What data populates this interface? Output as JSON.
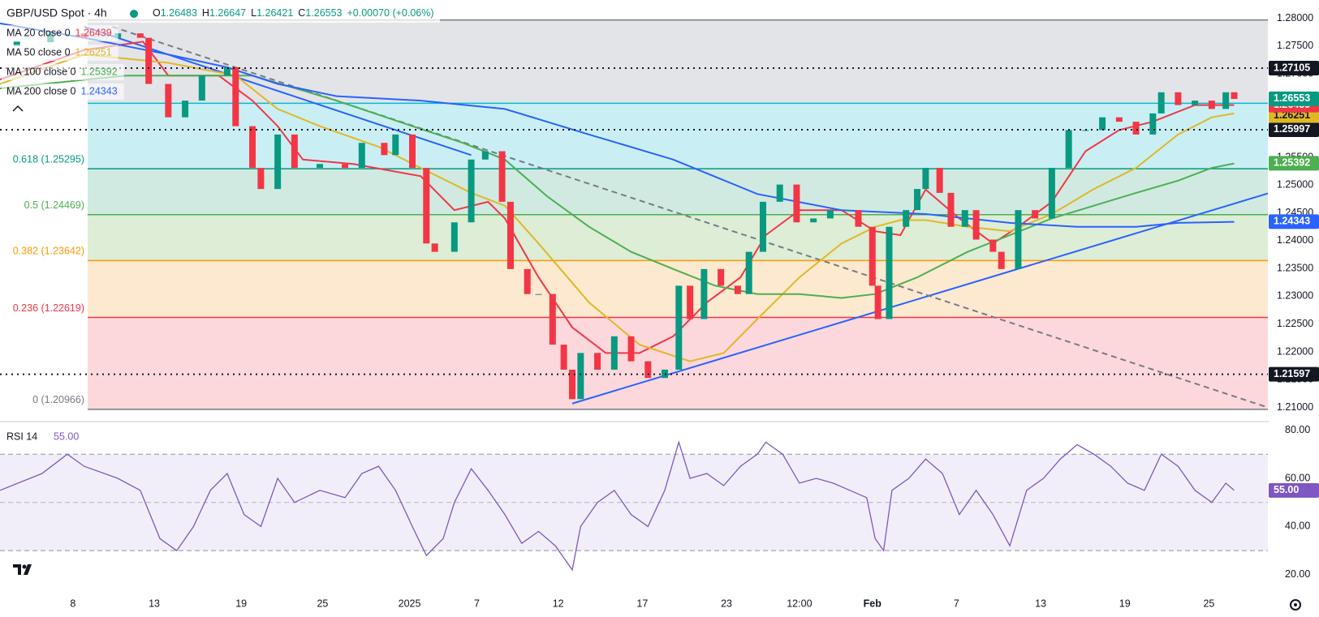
{
  "chart_data": [
    {
      "type": "candlestick",
      "title": "GBP/USD Spot · 4h",
      "ohlc": [
        "O",
        "1.26483",
        "H",
        "1.26647",
        "L",
        "1.26421",
        "C",
        "1.26553",
        "+0.00070 (+0.06%)"
      ],
      "up_color": "#089981",
      "down_color": "#f23645",
      "x": [
        6,
        18,
        30,
        42,
        50,
        53,
        60,
        66,
        72,
        81,
        84,
        90,
        93,
        99,
        105,
        114,
        123,
        129,
        137,
        141,
        147,
        152,
        155,
        162,
        168,
        173,
        179,
        182,
        188,
        192,
        197,
        201,
        204,
        207,
        213,
        219,
        225,
        231,
        237,
        242,
        246,
        251,
        257,
        263,
        267,
        272,
        278,
        284,
        290,
        296,
        302,
        306,
        311,
        313,
        317,
        323,
        327,
        330,
        335,
        339,
        344,
        348,
        354,
        357,
        363,
        369,
        375,
        381,
        387,
        393,
        399,
        405,
        411,
        414,
        420,
        426,
        432,
        437,
        440
      ],
      "open": [
        1.275,
        1.2758,
        1.2773,
        1.2765,
        1.2773,
        1.2765,
        1.2682,
        1.2622,
        1.2652,
        1.2697,
        1.2712,
        1.2606,
        1.2531,
        1.2493,
        1.2591,
        1.2531,
        1.2538,
        1.2531,
        1.2576,
        1.2554,
        1.2591,
        1.2531,
        1.2395,
        1.238,
        1.2433,
        1.2546,
        1.2561,
        1.247,
        1.2349,
        1.2304,
        1.2304,
        1.2213,
        1.2168,
        1.2115,
        1.2198,
        1.2168,
        1.2228,
        1.2183,
        1.2153,
        1.2168,
        1.2319,
        1.2259,
        1.2349,
        1.2319,
        1.2304,
        1.238,
        1.247,
        1.2501,
        1.2433,
        1.244,
        1.2455,
        1.2455,
        1.2425,
        1.2319,
        1.2259,
        1.2425,
        1.2455,
        1.2493,
        1.2531,
        1.2486,
        1.2425,
        1.2455,
        1.2402,
        1.238,
        1.2349,
        1.2455,
        1.244,
        1.2531,
        1.2599,
        1.2599,
        1.2622,
        1.2614,
        1.2591,
        1.2629,
        1.2667,
        1.2644,
        1.2652,
        1.2637,
        1.2667
      ],
      "close": [
        1.2758,
        1.2773,
        1.2765,
        1.2773,
        1.2765,
        1.2682,
        1.2622,
        1.2652,
        1.2697,
        1.2712,
        1.2606,
        1.2531,
        1.2493,
        1.2591,
        1.2531,
        1.2538,
        1.2531,
        1.2576,
        1.2554,
        1.2591,
        1.2531,
        1.2395,
        1.238,
        1.2433,
        1.2546,
        1.2561,
        1.247,
        1.2349,
        1.2304,
        1.2304,
        1.2213,
        1.2168,
        1.2115,
        1.2198,
        1.2168,
        1.2228,
        1.2183,
        1.2153,
        1.2168,
        1.2319,
        1.2259,
        1.2349,
        1.2319,
        1.2304,
        1.238,
        1.247,
        1.2501,
        1.2433,
        1.244,
        1.2455,
        1.2455,
        1.2425,
        1.2319,
        1.2259,
        1.2425,
        1.2455,
        1.2493,
        1.2531,
        1.2486,
        1.2425,
        1.2455,
        1.2402,
        1.238,
        1.2349,
        1.2455,
        1.244,
        1.2531,
        1.2599,
        1.2599,
        1.2622,
        1.2614,
        1.2591,
        1.2629,
        1.2667,
        1.2644,
        1.2652,
        1.2637,
        1.2667,
        1.2655
      ],
      "xlim": [
        0,
        452
      ],
      "xticks": [
        {
          "value": 26,
          "label": "8"
        },
        {
          "value": 55,
          "label": "13"
        },
        {
          "value": 86,
          "label": "19"
        },
        {
          "value": 115,
          "label": "25"
        },
        {
          "value": 146,
          "label": "2025"
        },
        {
          "value": 170,
          "label": "7"
        },
        {
          "value": 199,
          "label": "12"
        },
        {
          "value": 229,
          "label": "17"
        },
        {
          "value": 259,
          "label": "23"
        },
        {
          "value": 285,
          "label": "12:00"
        },
        {
          "value": 311,
          "label": "Feb"
        },
        {
          "value": 341,
          "label": "7"
        },
        {
          "value": 371,
          "label": "13"
        },
        {
          "value": 401,
          "label": "19"
        },
        {
          "value": 431,
          "label": "25"
        }
      ],
      "ylim": [
        1.2076,
        1.2833
      ],
      "yticks": [
        {
          "value": 1.21,
          "label": "1.21000"
        },
        {
          "value": 1.215,
          "label": "1.21500"
        },
        {
          "value": 1.22,
          "label": "1.22000"
        },
        {
          "value": 1.225,
          "label": "1.22500"
        },
        {
          "value": 1.23,
          "label": "1.23000"
        },
        {
          "value": 1.235,
          "label": "1.23500"
        },
        {
          "value": 1.24,
          "label": "1.24000"
        },
        {
          "value": 1.245,
          "label": "1.24500"
        },
        {
          "value": 1.25,
          "label": "1.25000"
        },
        {
          "value": 1.255,
          "label": "1.25500"
        },
        {
          "value": 1.26,
          "label": "1.26000"
        },
        {
          "value": 1.265,
          "label": "1.26500"
        },
        {
          "value": 1.27,
          "label": "1.27000"
        },
        {
          "value": 1.275,
          "label": "1.27500"
        },
        {
          "value": 1.28,
          "label": "1.28000"
        }
      ],
      "grid": false,
      "last_price": {
        "value": 1.26553,
        "label": "1.26553"
      },
      "moving_averages": [
        {
          "name": "MA 20 close 0",
          "color": "#f23645",
          "last": {
            "value": 1.26439,
            "label": "1.26439"
          },
          "x": [
            0,
            30,
            51,
            60,
            78,
            90,
            99,
            108,
            126,
            150,
            162,
            174,
            180,
            192,
            204,
            216,
            228,
            240,
            252,
            264,
            273,
            285,
            300,
            312,
            321,
            330,
            342,
            354,
            363,
            375,
            387,
            399,
            411,
            426,
            440
          ],
          "values": [
            1.269,
            1.2743,
            1.2758,
            1.2697,
            1.2697,
            1.2652,
            1.2606,
            1.2546,
            1.2538,
            1.2516,
            1.2455,
            1.247,
            1.244,
            1.2334,
            1.2244,
            1.2198,
            1.2198,
            1.2228,
            1.2289,
            1.2334,
            1.241,
            1.2455,
            1.2455,
            1.2417,
            1.241,
            1.2492,
            1.244,
            1.2395,
            1.2425,
            1.247,
            1.2561,
            1.2599,
            1.2614,
            1.2644,
            1.2644
          ]
        },
        {
          "name": "MA 50 close 0",
          "color": "#e0b825",
          "last": {
            "value": 1.26251,
            "label": "1.26251"
          },
          "x": [
            0,
            30,
            60,
            84,
            99,
            114,
            135,
            150,
            168,
            180,
            192,
            210,
            228,
            246,
            258,
            270,
            285,
            300,
            312,
            321,
            330,
            345,
            360,
            375,
            390,
            405,
            420,
            432,
            440
          ],
          "values": [
            1.2682,
            1.2735,
            1.272,
            1.2697,
            1.2637,
            1.2606,
            1.2569,
            1.2531,
            1.2486,
            1.2463,
            1.2395,
            1.2289,
            1.2213,
            1.2183,
            1.2198,
            1.2259,
            1.2334,
            1.2395,
            1.2425,
            1.2437,
            1.2437,
            1.2425,
            1.2417,
            1.2448,
            1.2493,
            1.2531,
            1.2591,
            1.2622,
            1.2629
          ]
        },
        {
          "name": "MA 100 close 0",
          "color": "#4caf50",
          "last": {
            "value": 1.25392,
            "label": "1.25392"
          },
          "x": [
            0,
            45,
            90,
            120,
            150,
            165,
            180,
            195,
            210,
            225,
            240,
            255,
            270,
            285,
            300,
            312,
            327,
            345,
            360,
            375,
            390,
            405,
            420,
            432,
            440
          ],
          "values": [
            1.2674,
            1.2697,
            1.2697,
            1.2652,
            1.2601,
            1.2576,
            1.2546,
            1.248,
            1.2425,
            1.238,
            1.2349,
            1.2319,
            1.2304,
            1.2304,
            1.2297,
            1.2304,
            1.2334,
            1.238,
            1.241,
            1.244,
            1.2463,
            1.2486,
            1.2508,
            1.2531,
            1.2539
          ]
        },
        {
          "name": "MA 200 close 0",
          "color": "#2962ff",
          "last": {
            "value": 1.24343,
            "label": "1.24343"
          },
          "x": [
            0,
            30,
            60,
            81,
            99,
            120,
            150,
            180,
            210,
            240,
            270,
            300,
            330,
            360,
            384,
            405,
            420,
            440
          ],
          "values": [
            1.2791,
            1.2765,
            1.2735,
            1.2712,
            1.2682,
            1.266,
            1.2652,
            1.2637,
            1.2591,
            1.2546,
            1.2484,
            1.2455,
            1.2448,
            1.2432,
            1.2425,
            1.2425,
            1.2432,
            1.2434
          ]
        }
      ],
      "trendlines": [
        {
          "color": "#2962ff",
          "dashed": false,
          "x": [
            30,
            168
          ],
          "values": [
            1.2785,
            1.2554
          ]
        },
        {
          "color": "#2962ff",
          "dashed": false,
          "x": [
            204,
            452
          ],
          "values": [
            1.2107,
            1.2485
          ]
        },
        {
          "color": "#787b86",
          "dashed": true,
          "x": [
            40,
            452
          ],
          "values": [
            1.2785,
            1.21
          ]
        }
      ],
      "fib_levels": [
        {
          "label": null,
          "value": 1.27971,
          "color": "#787b86",
          "zone_color": "#e3e4e8"
        },
        {
          "label": null,
          "value": 1.26472,
          "color": "#00bcd4",
          "zone_color": "#c9eff4"
        },
        {
          "label": "0.618 (1.25295)",
          "value": 1.25295,
          "color": "#089981",
          "zone_color": "#d0eae1"
        },
        {
          "label": "0.5 (1.24469)",
          "value": 1.24469,
          "color": "#4caf50",
          "zone_color": "#ddedd6"
        },
        {
          "label": "0.382 (1.23642)",
          "value": 1.23642,
          "color": "#ff9800",
          "zone_color": "#fde9cf"
        },
        {
          "label": "0.236 (1.22619)",
          "value": 1.22619,
          "color": "#f23645",
          "zone_color": "#fcd8dc"
        },
        {
          "label": "0 (1.20966)",
          "value": 1.20966,
          "color": "#787b86",
          "zone_color": null
        }
      ],
      "levels": [
        {
          "value": 1.27105,
          "label": "1.27105"
        },
        {
          "value": 1.25997,
          "label": "1.25997"
        },
        {
          "value": 1.21597,
          "label": "1.21597"
        }
      ]
    },
    {
      "type": "line",
      "title": "RSI 14",
      "color": "#7e57c2",
      "last": {
        "value": 55,
        "label": "55.00"
      },
      "x": [
        0,
        15,
        24,
        30,
        42,
        50,
        57,
        63,
        69,
        75,
        81,
        87,
        93,
        99,
        105,
        114,
        123,
        129,
        135,
        141,
        147,
        152,
        158,
        162,
        168,
        174,
        180,
        186,
        192,
        198,
        204,
        207,
        213,
        219,
        225,
        231,
        237,
        242,
        246,
        252,
        258,
        264,
        270,
        273,
        279,
        285,
        291,
        297,
        303,
        309,
        312,
        315,
        318,
        324,
        330,
        336,
        342,
        348,
        354,
        360,
        366,
        372,
        378,
        384,
        390,
        396,
        402,
        408,
        414,
        420,
        426,
        432,
        437,
        440
      ],
      "values": [
        55,
        62,
        70,
        65,
        60,
        55,
        35,
        30,
        40,
        55,
        62,
        45,
        40,
        60,
        50,
        55,
        52,
        62,
        65,
        55,
        40,
        28,
        35,
        50,
        64,
        55,
        45,
        33,
        38,
        32,
        22,
        40,
        50,
        55,
        45,
        40,
        55,
        75,
        60,
        62,
        57,
        65,
        70,
        75,
        70,
        58,
        60,
        58,
        55,
        52,
        35,
        30,
        55,
        60,
        68,
        62,
        45,
        55,
        45,
        32,
        55,
        60,
        68,
        74,
        70,
        65,
        58,
        55,
        70,
        65,
        55,
        50,
        58,
        55
      ],
      "ylim": [
        12.9,
        83.2
      ],
      "yticks": [
        {
          "value": 20,
          "label": "20.00"
        },
        {
          "value": 40,
          "label": "40.00"
        },
        {
          "value": 60,
          "label": "60.00"
        },
        {
          "value": 80,
          "label": "80.00"
        }
      ],
      "bands": [
        70,
        50,
        30
      ]
    }
  ]
}
